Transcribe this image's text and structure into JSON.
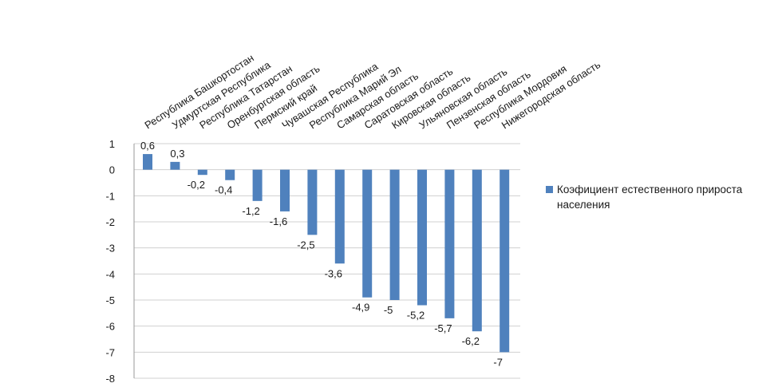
{
  "chart_data": {
    "type": "bar",
    "categories": [
      "Республика Башкортостан",
      "Удмуртская Республика",
      "Республика Татарстан",
      "Оренбургская область",
      "Пермский край",
      "Чувашская Республика",
      "Республика Марий Эл",
      "Самарская область",
      "Саратовская область",
      "Кировская область",
      "Ульяновская область",
      "Пензенская область",
      "Республика Мордовия",
      "Нижегородская область"
    ],
    "values": [
      0.6,
      0.3,
      -0.2,
      -0.4,
      -1.2,
      -1.6,
      -2.5,
      -3.6,
      -4.9,
      -5,
      -5.2,
      -5.7,
      -6.2,
      -7
    ],
    "data_labels": [
      "0,6",
      "0,3",
      "-0,2",
      "-0,4",
      "-1,2",
      "-1,6",
      "-2,5",
      "-3,6",
      "-4,9",
      "-5",
      "-5,2",
      "-5,7",
      "-6,2",
      "-7"
    ],
    "yticks": [
      "1",
      "0",
      "-1",
      "-2",
      "-3",
      "-4",
      "-5",
      "-6",
      "-7",
      "-8"
    ],
    "ylim": [
      -8,
      1
    ],
    "series_name": "Коэфициент естественного прироста населения",
    "color": "#4f81bd",
    "title": "",
    "xlabel": "",
    "ylabel": "",
    "legend_position": "right",
    "grid": true
  }
}
